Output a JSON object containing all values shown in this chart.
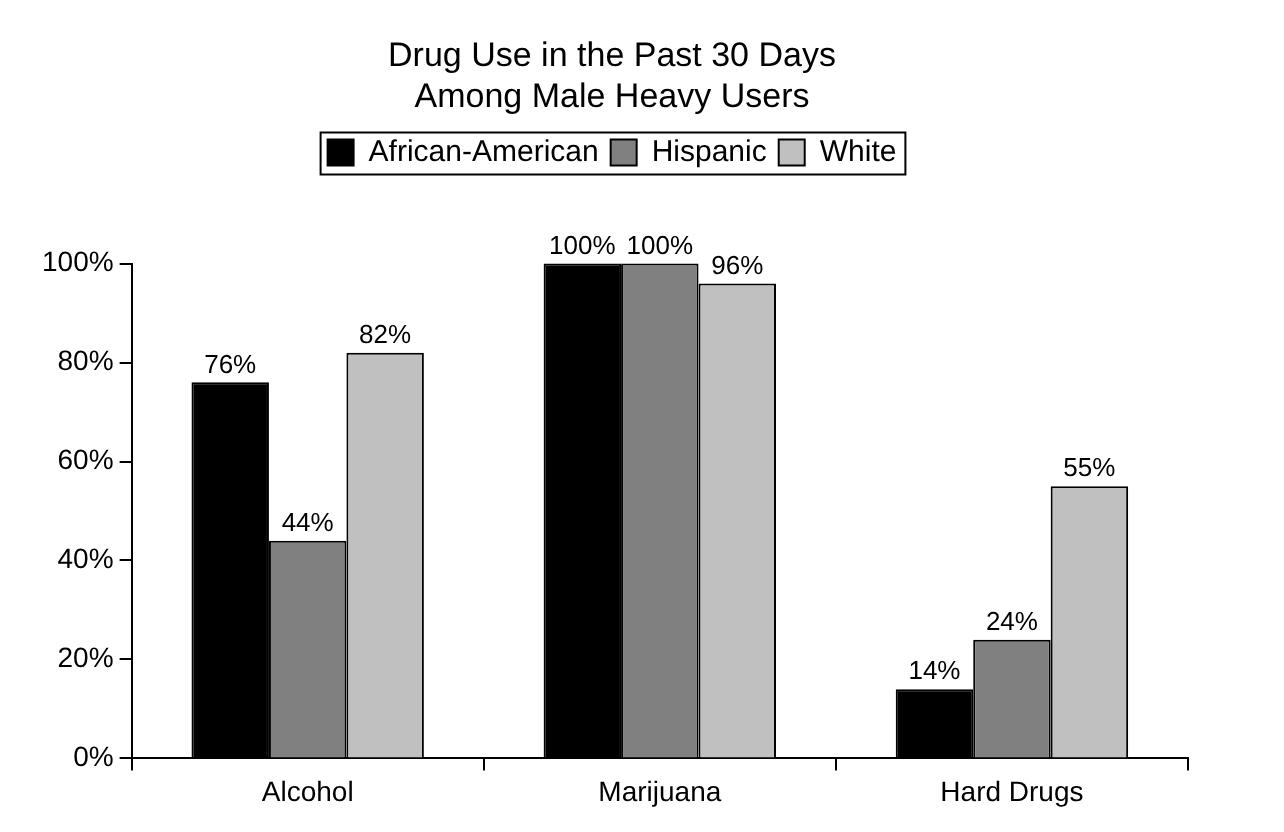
{
  "chart_data": {
    "type": "bar",
    "title": "Drug Use in the Past 30 Days\nAmong Male Heavy Users",
    "categories": [
      "Alcohol",
      "Marijuana",
      "Hard Drugs"
    ],
    "series": [
      {
        "name": "African-American",
        "color": "#000000",
        "values": [
          76,
          100,
          14
        ],
        "value_labels": [
          "76%",
          "100%",
          "14%"
        ]
      },
      {
        "name": "Hispanic",
        "color": "#808080",
        "values": [
          44,
          100,
          24
        ],
        "value_labels": [
          "44%",
          "100%",
          "24%"
        ]
      },
      {
        "name": "White",
        "color": "#c0c0c0",
        "values": [
          82,
          96,
          55
        ],
        "value_labels": [
          "82%",
          "96%",
          "55%"
        ]
      }
    ],
    "ylim": [
      0,
      100
    ],
    "yticks": [
      {
        "value": 0,
        "label": "0%"
      },
      {
        "value": 20,
        "label": "20%"
      },
      {
        "value": 40,
        "label": "40%"
      },
      {
        "value": 60,
        "label": "60%"
      },
      {
        "value": 80,
        "label": "80%"
      },
      {
        "value": 100,
        "label": "100%"
      }
    ],
    "grid": false,
    "legend": "top"
  }
}
